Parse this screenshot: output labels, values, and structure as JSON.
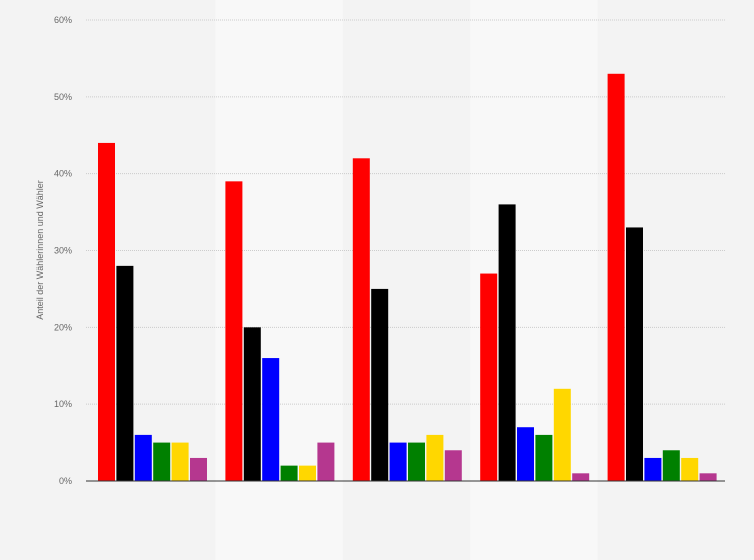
{
  "chart_data": {
    "type": "bar",
    "title": "",
    "xlabel": "",
    "ylabel": "Anteil der Wählerinnen und Wähler",
    "ylim": [
      0,
      60
    ],
    "yticks": [
      0,
      10,
      20,
      30,
      40,
      50,
      60
    ],
    "ytick_labels": [
      "0%",
      "10%",
      "20%",
      "30%",
      "40%",
      "50%",
      "60%"
    ],
    "grid": true,
    "legend": "none",
    "categories": [
      "",
      "",
      "",
      "",
      ""
    ],
    "series": [
      {
        "color": "#ff0000",
        "values": [
          44,
          39,
          42,
          27,
          53
        ]
      },
      {
        "color": "#000000",
        "values": [
          28,
          20,
          25,
          36,
          33
        ]
      },
      {
        "color": "#0000ff",
        "values": [
          6,
          16,
          5,
          7,
          3
        ]
      },
      {
        "color": "#008000",
        "values": [
          5,
          2,
          5,
          6,
          4
        ]
      },
      {
        "color": "#ffd700",
        "values": [
          5,
          2,
          6,
          12,
          3
        ]
      },
      {
        "color": "#b5378f",
        "values": [
          3,
          5,
          4,
          1,
          1
        ]
      }
    ]
  },
  "colors": {
    "background": "#f3f3f3",
    "band_light": "#f8f8f8",
    "gridline": "#cccccc",
    "axis": "#333333",
    "text": "#666666"
  }
}
